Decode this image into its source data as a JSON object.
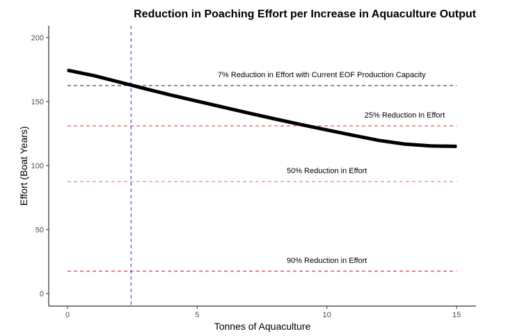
{
  "chart_data": {
    "type": "line",
    "title": "Reduction in Poaching Effort per Increase in Aquaculture Output",
    "xlabel": "Tonnes of Aquaculture",
    "ylabel": "Effort (Boat Years)",
    "xlim": [
      0,
      15
    ],
    "ylim": [
      0,
      200
    ],
    "x_ticks": [
      0,
      5,
      10,
      15
    ],
    "y_ticks": [
      0,
      50,
      100,
      150,
      200
    ],
    "x_tick_labels": [
      "0",
      "5",
      "10",
      "15"
    ],
    "y_tick_labels": [
      "0",
      "50",
      "100",
      "150",
      "200"
    ],
    "grid": false,
    "legend": "none",
    "series": [
      {
        "color": "#000000",
        "x": [
          0,
          1,
          2,
          3,
          4,
          5,
          6,
          7,
          8,
          9,
          10,
          11,
          12,
          13,
          14,
          15
        ],
        "values": [
          174.5,
          170.3,
          165.2,
          160.0,
          155.0,
          150.3,
          145.6,
          140.9,
          136.4,
          132.0,
          127.8,
          123.7,
          119.7,
          116.8,
          115.3,
          115.0
        ]
      }
    ],
    "reference_lines": [
      {
        "orientation": "horizontal",
        "y": 162.5,
        "color": "#191970",
        "label": "7% Reduction in Effort with Current EOF Production Capacity",
        "label_x": 9.8
      },
      {
        "orientation": "horizontal",
        "y": 131,
        "color": "#e34a33",
        "label": "25% Reduction in Effort",
        "label_x": 13.0
      },
      {
        "orientation": "horizontal",
        "y": 87.5,
        "color": "#f46d43",
        "label": "50% Reduction in Effort",
        "label_x": 10.0
      },
      {
        "orientation": "horizontal",
        "y": 17.5,
        "color": "#e41a1c",
        "label": "90% Reduction in Effort",
        "label_x": 10.0
      },
      {
        "orientation": "vertical",
        "x": 2.45,
        "color": "#3f3fd9",
        "label": ""
      }
    ]
  }
}
